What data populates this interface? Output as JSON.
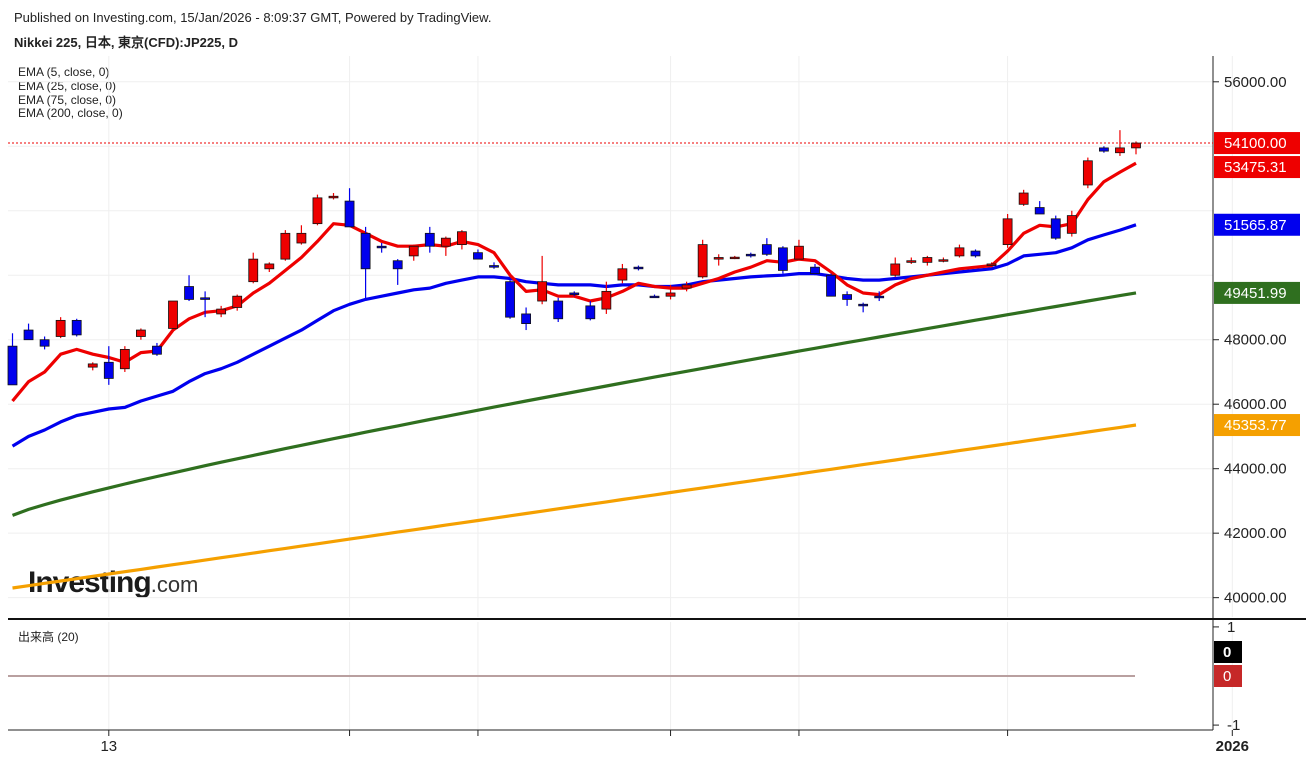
{
  "header": {
    "published": "Published on Investing.com, 15/Jan/2026 - 8:09:37 GMT, Powered by TradingView.",
    "title": "Nikkei 225, 日本, 東京(CFD):JP225, D"
  },
  "legend": {
    "ema5": "EMA (5, close, 0)",
    "ema25": "EMA (25, close, 0)",
    "ema75": "EMA (75, close, 0)",
    "ema200": "EMA (200, close, 0)",
    "volume": "出来高 (20)"
  },
  "logo": {
    "main": "Investing",
    "suffix": ".com"
  },
  "colors": {
    "up": "#ee0000",
    "down": "#0000ee",
    "ema5": "#ee0000",
    "ema25": "#0000ee",
    "ema75": "#2f6f1f",
    "ema200": "#f5a000",
    "last_price_line": "#ee0000"
  },
  "chart_data": {
    "type": "candlestick",
    "ylim": [
      39400,
      56800
    ],
    "ytick_labels": [
      "56000.00",
      "48000.00",
      "46000.00",
      "44000.00",
      "42000.00",
      "40000.00"
    ],
    "y_ticks": [
      56000,
      48000,
      46000,
      44000,
      42000,
      40000
    ],
    "right_labels": {
      "last": "54100.00",
      "ema5": "53475.31",
      "ema25": "51565.87",
      "ema75": "49451.99",
      "ema200": "45353.77"
    },
    "right_values": {
      "last": 54100,
      "ema5": 53475.31,
      "ema25": 51565.87,
      "ema75": 49451.99,
      "ema200": 45353.77
    },
    "x_tick_labels": [
      {
        "label": "13",
        "index": 6
      },
      {
        "label": "2026",
        "index": 76
      }
    ],
    "x_gridline_indices": [
      6,
      21,
      29,
      41,
      49,
      62,
      76,
      84
    ],
    "candles": [
      {
        "o": 47800,
        "h": 48200,
        "l": 46600,
        "c": 46600
      },
      {
        "o": 48300,
        "h": 48500,
        "l": 48000,
        "c": 48000
      },
      {
        "o": 48000,
        "h": 48100,
        "l": 47700,
        "c": 47800
      },
      {
        "o": 48100,
        "h": 48700,
        "l": 48050,
        "c": 48600
      },
      {
        "o": 48600,
        "h": 48650,
        "l": 48100,
        "c": 48150
      },
      {
        "o": 47150,
        "h": 47300,
        "l": 47050,
        "c": 47250
      },
      {
        "o": 47300,
        "h": 47800,
        "l": 46600,
        "c": 46800
      },
      {
        "o": 47100,
        "h": 47800,
        "l": 47000,
        "c": 47700
      },
      {
        "o": 48100,
        "h": 48350,
        "l": 48000,
        "c": 48300
      },
      {
        "o": 47800,
        "h": 47900,
        "l": 47500,
        "c": 47550
      },
      {
        "o": 48350,
        "h": 49200,
        "l": 48300,
        "c": 49200
      },
      {
        "o": 49650,
        "h": 50000,
        "l": 49200,
        "c": 49250
      },
      {
        "o": 49300,
        "h": 49500,
        "l": 48700,
        "c": 49250
      },
      {
        "o": 48800,
        "h": 49050,
        "l": 48700,
        "c": 48950
      },
      {
        "o": 49000,
        "h": 49400,
        "l": 48900,
        "c": 49350
      },
      {
        "o": 49800,
        "h": 50700,
        "l": 49750,
        "c": 50500
      },
      {
        "o": 50200,
        "h": 50400,
        "l": 50100,
        "c": 50350
      },
      {
        "o": 50500,
        "h": 51400,
        "l": 50450,
        "c": 51300
      },
      {
        "o": 51000,
        "h": 51550,
        "l": 50950,
        "c": 51300
      },
      {
        "o": 51600,
        "h": 52500,
        "l": 51550,
        "c": 52400
      },
      {
        "o": 52400,
        "h": 52550,
        "l": 52350,
        "c": 52450
      },
      {
        "o": 52300,
        "h": 52700,
        "l": 51500,
        "c": 51500
      },
      {
        "o": 51300,
        "h": 51500,
        "l": 49250,
        "c": 50200
      },
      {
        "o": 50900,
        "h": 51000,
        "l": 50700,
        "c": 50850
      },
      {
        "o": 50450,
        "h": 50500,
        "l": 49700,
        "c": 50200
      },
      {
        "o": 50600,
        "h": 50950,
        "l": 50450,
        "c": 50900
      },
      {
        "o": 51300,
        "h": 51500,
        "l": 50700,
        "c": 50900
      },
      {
        "o": 50900,
        "h": 51200,
        "l": 50600,
        "c": 51150
      },
      {
        "o": 50950,
        "h": 51400,
        "l": 50800,
        "c": 51350
      },
      {
        "o": 50700,
        "h": 50800,
        "l": 50500,
        "c": 50500
      },
      {
        "o": 50300,
        "h": 50400,
        "l": 50200,
        "c": 50250
      },
      {
        "o": 49800,
        "h": 49850,
        "l": 48650,
        "c": 48700
      },
      {
        "o": 48800,
        "h": 49000,
        "l": 48300,
        "c": 48500
      },
      {
        "o": 49200,
        "h": 50600,
        "l": 49100,
        "c": 49800
      },
      {
        "o": 49200,
        "h": 49300,
        "l": 48550,
        "c": 48650
      },
      {
        "o": 49450,
        "h": 49500,
        "l": 49350,
        "c": 49400
      },
      {
        "o": 49050,
        "h": 49200,
        "l": 48600,
        "c": 48650
      },
      {
        "o": 48950,
        "h": 49800,
        "l": 48800,
        "c": 49500
      },
      {
        "o": 49850,
        "h": 50350,
        "l": 49750,
        "c": 50200
      },
      {
        "o": 50250,
        "h": 50300,
        "l": 50150,
        "c": 50200
      },
      {
        "o": 49350,
        "h": 49400,
        "l": 49300,
        "c": 49330
      },
      {
        "o": 49350,
        "h": 49700,
        "l": 49250,
        "c": 49450
      },
      {
        "o": 49600,
        "h": 49800,
        "l": 49500,
        "c": 49700
      },
      {
        "o": 49950,
        "h": 51100,
        "l": 49900,
        "c": 50950
      },
      {
        "o": 50500,
        "h": 50650,
        "l": 50300,
        "c": 50550
      },
      {
        "o": 50550,
        "h": 50600,
        "l": 50500,
        "c": 50560
      },
      {
        "o": 50650,
        "h": 50700,
        "l": 50550,
        "c": 50600
      },
      {
        "o": 50950,
        "h": 51150,
        "l": 50600,
        "c": 50650
      },
      {
        "o": 50850,
        "h": 50900,
        "l": 50050,
        "c": 50150
      },
      {
        "o": 50500,
        "h": 51100,
        "l": 50450,
        "c": 50900
      },
      {
        "o": 50250,
        "h": 50350,
        "l": 50000,
        "c": 50050
      },
      {
        "o": 50000,
        "h": 50050,
        "l": 49350,
        "c": 49350
      },
      {
        "o": 49400,
        "h": 49500,
        "l": 49050,
        "c": 49250
      },
      {
        "o": 49100,
        "h": 49150,
        "l": 48850,
        "c": 49050
      },
      {
        "o": 49350,
        "h": 49500,
        "l": 49200,
        "c": 49300
      },
      {
        "o": 50000,
        "h": 50550,
        "l": 49950,
        "c": 50350
      },
      {
        "o": 50400,
        "h": 50550,
        "l": 50350,
        "c": 50450
      },
      {
        "o": 50400,
        "h": 50600,
        "l": 50300,
        "c": 50550
      },
      {
        "o": 50450,
        "h": 50550,
        "l": 50400,
        "c": 50480
      },
      {
        "o": 50600,
        "h": 50950,
        "l": 50550,
        "c": 50850
      },
      {
        "o": 50750,
        "h": 50800,
        "l": 50550,
        "c": 50600
      },
      {
        "o": 50300,
        "h": 50400,
        "l": 50250,
        "c": 50350
      },
      {
        "o": 50950,
        "h": 51900,
        "l": 50850,
        "c": 51750
      },
      {
        "o": 52200,
        "h": 52650,
        "l": 52150,
        "c": 52550
      },
      {
        "o": 52100,
        "h": 52300,
        "l": 51900,
        "c": 51900
      },
      {
        "o": 51750,
        "h": 51850,
        "l": 51100,
        "c": 51150
      },
      {
        "o": 51300,
        "h": 52000,
        "l": 51200,
        "c": 51850
      },
      {
        "o": 52800,
        "h": 53650,
        "l": 52700,
        "c": 53550
      },
      {
        "o": 53950,
        "h": 54000,
        "l": 53800,
        "c": 53850
      },
      {
        "o": 53800,
        "h": 54500,
        "l": 53700,
        "c": 53950
      },
      {
        "o": 53950,
        "h": 54150,
        "l": 53750,
        "c": 54100
      }
    ],
    "ema5_values": [
      46100,
      46700,
      47000,
      47550,
      47700,
      47550,
      47450,
      47300,
      47600,
      47650,
      48300,
      48650,
      48850,
      48900,
      49050,
      49450,
      49750,
      50150,
      50550,
      51050,
      51600,
      51550,
      51300,
      51050,
      50900,
      50900,
      50950,
      50900,
      51050,
      50950,
      50700,
      50000,
      49500,
      49550,
      49350,
      49350,
      49200,
      49300,
      49500,
      49750,
      49650,
      49600,
      49600,
      49750,
      49900,
      50100,
      50250,
      50450,
      50400,
      50500,
      50450,
      50100,
      49700,
      49450,
      49400,
      49700,
      49900,
      50000,
      50100,
      50200,
      50250,
      50300,
      50750,
      51300,
      51550,
      51500,
      51600,
      52350,
      52900,
      53200,
      53475.31
    ],
    "ema25_values": [
      44700,
      45000,
      45200,
      45450,
      45650,
      45750,
      45850,
      45900,
      46100,
      46250,
      46400,
      46700,
      46950,
      47100,
      47300,
      47550,
      47800,
      48050,
      48300,
      48600,
      48900,
      49100,
      49250,
      49350,
      49450,
      49550,
      49600,
      49750,
      49850,
      49950,
      49950,
      49900,
      49800,
      49750,
      49700,
      49700,
      49700,
      49650,
      49700,
      49700,
      49650,
      49650,
      49700,
      49800,
      49850,
      49900,
      49950,
      49980,
      50000,
      50050,
      50050,
      49980,
      49900,
      49850,
      49850,
      49900,
      49950,
      50000,
      50050,
      50100,
      50150,
      50200,
      50350,
      50600,
      50650,
      50700,
      50850,
      51100,
      51250,
      51400,
      51565.87
    ],
    "ema75_values": [
      42550,
      42700,
      42850,
      43100,
      43250,
      43350,
      43450,
      43550,
      43700,
      43850,
      44000,
      44150,
      44300,
      44450,
      44600,
      44750,
      44950,
      45100,
      45300,
      45500,
      45700,
      45850,
      46000,
      46150,
      46300,
      46450,
      46600,
      46750,
      46900,
      47050,
      47200,
      47300,
      47400,
      47500,
      47550,
      47650,
      47750,
      47800,
      47900,
      48000,
      48100,
      48150,
      48200,
      48250,
      48350,
      48450,
      48550,
      48650,
      48750,
      48850,
      48900,
      48950,
      49000,
      49050,
      49100,
      49150,
      49200,
      49250,
      49300,
      49350,
      49450,
      49550,
      49650,
      49700,
      49800,
      49900,
      50000,
      50100,
      50200,
      50300,
      49451.99
    ],
    "ema200_values": [
      40300,
      40350,
      40400,
      40500,
      40550,
      40600,
      40700,
      40800,
      40850,
      40950,
      41050,
      41150,
      41250,
      41350,
      41450,
      41550,
      41650,
      41750,
      41850,
      41950,
      42050,
      42150,
      42250,
      42350,
      42450,
      42550,
      42650,
      42750,
      42850,
      42950,
      43000,
      43050,
      43100,
      43150,
      43200,
      43250,
      43300,
      43400,
      43450,
      43500,
      43550,
      43600,
      43650,
      43700,
      43750,
      43800,
      43850,
      43900,
      43950,
      44000,
      44050,
      44100,
      44150,
      44200,
      44250,
      44300,
      44350,
      44400,
      44450,
      44500,
      44550,
      44600,
      44650,
      44700,
      44750,
      44800,
      44850,
      44900,
      44950,
      45000,
      45353.77
    ],
    "volume": {
      "label": "出来高 (20)",
      "ylim": [
        -1.1,
        1.1
      ],
      "y_ticks": [
        1,
        -1
      ],
      "tick_labels": [
        "1",
        "-1"
      ],
      "value_up": "0",
      "value_down": "0"
    }
  }
}
